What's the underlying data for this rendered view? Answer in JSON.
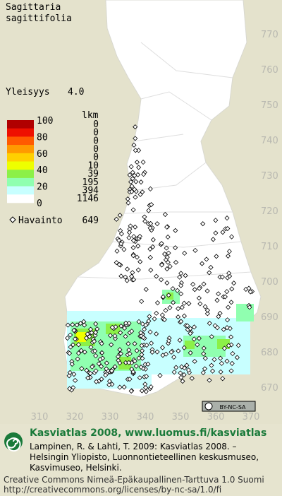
{
  "header": {
    "title_line1": "Sagittaria",
    "title_line2": "sagittifolia",
    "frequency_label": "Yleisyys",
    "frequency_value": "4.0"
  },
  "legend": {
    "count_header": "lkm",
    "scale_labels": [
      "100",
      "80",
      "60",
      "40",
      "20",
      "0"
    ],
    "bands": [
      {
        "color": "#b00000",
        "count": "0"
      },
      {
        "color": "#ee1000",
        "count": "0"
      },
      {
        "color": "#ff5a00",
        "count": "0"
      },
      {
        "color": "#ff9a00",
        "count": "0"
      },
      {
        "color": "#ffd000",
        "count": "0"
      },
      {
        "color": "#eeff00",
        "count": "10"
      },
      {
        "color": "#8cf048",
        "count": "39"
      },
      {
        "color": "#90ffb0",
        "count": "195"
      },
      {
        "color": "#c8ffff",
        "count": "394"
      },
      {
        "color": "#ffffff",
        "count": "1146"
      }
    ],
    "observation_label": "Havainto",
    "observation_count": "649"
  },
  "map": {
    "xticks": [
      310,
      320,
      330,
      340,
      350,
      360,
      370
    ],
    "yticks": [
      770,
      760,
      750,
      740,
      730,
      720,
      710,
      700,
      690,
      680,
      670
    ]
  },
  "license_badge": "BY-NC-SA",
  "footer": {
    "headline": "Kasviatlas 2008, www.luomus.fi/kasviatlas",
    "citation_line1": "Lampinen, R. & Lahti, T. 2009: Kasviatlas 2008. –",
    "citation_line2": "Helsingin Yliopisto, Luonnontieteellinen keskusmuseo,",
    "citation_line3": "Kasvimuseo, Helsinki.",
    "license_line1": "Creative Commons Nimeä-Epäkaupallinen-Tarttuva 1.0 Suomi",
    "license_line2": "http://creativecommons.org/licenses/by-nc-sa/1.0/fi"
  }
}
